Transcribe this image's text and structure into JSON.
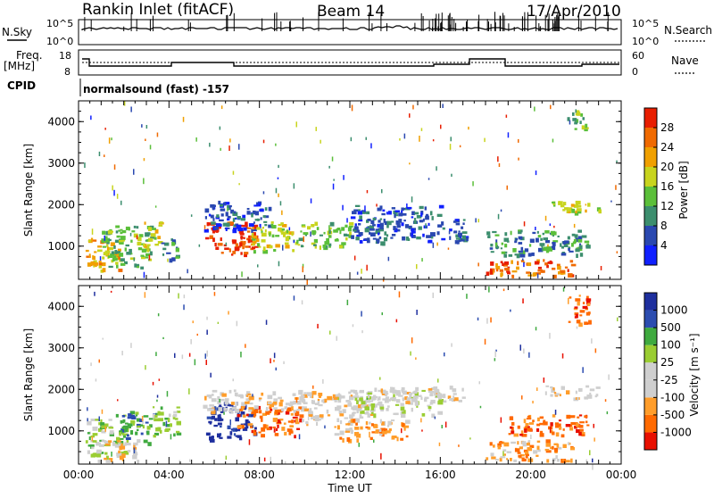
{
  "header": {
    "station": "Rankin Inlet (fitACF)",
    "beam": "Beam 14",
    "date": "17/Apr/2010"
  },
  "noise_panel": {
    "left_label": "N.Sky",
    "right_label": "N.Search",
    "left_ticks": [
      "10^5",
      "10^0"
    ],
    "right_ticks": [
      "10^5",
      "10^0"
    ]
  },
  "freq_panel": {
    "left_label_1": "Freq.",
    "left_label_2": "[MHz]",
    "right_label": "Nave",
    "left_ticks": [
      "18",
      "8"
    ],
    "right_ticks": [
      "60",
      "0"
    ]
  },
  "cpid": {
    "label": "CPID",
    "text": "normalsound (fast) -157"
  },
  "colors": {
    "power": [
      "#1020ff",
      "#2a48b0",
      "#3c8e6e",
      "#5bbf3a",
      "#c8d41e",
      "#f0a000",
      "#f06a00",
      "#e81e00"
    ],
    "velocity": [
      "#e81000",
      "#ff6a00",
      "#ff9d2a",
      "#cfcfcf",
      "#cfcfcf",
      "#9acd32",
      "#3faa3f",
      "#2c4db0",
      "#1e2f9e"
    ]
  },
  "chart_data": [
    {
      "type": "heatmap",
      "name": "power",
      "ylabel": "Slant Range [km]",
      "xlabel": "",
      "ylim": [
        200,
        4500
      ],
      "yticks": [
        "1000",
        "2000",
        "3000",
        "4000"
      ],
      "xlim_hours": [
        0,
        24
      ],
      "colorbar": {
        "label": "Power [dB]",
        "ticks": [
          "4",
          "8",
          "12",
          "16",
          "20",
          "24",
          "28"
        ],
        "range": [
          0,
          32
        ]
      },
      "blobs": [
        {
          "t0": 0.3,
          "t1": 1.8,
          "r0": 400,
          "r1": 1200,
          "level": 5
        },
        {
          "t0": 1.0,
          "t1": 3.2,
          "r0": 500,
          "r1": 1500,
          "level": 3
        },
        {
          "t0": 2.8,
          "t1": 3.6,
          "r0": 900,
          "r1": 1600,
          "level": 4
        },
        {
          "t0": 3.6,
          "t1": 4.4,
          "r0": 700,
          "r1": 1200,
          "level": 2
        },
        {
          "t0": 5.6,
          "t1": 7.8,
          "r0": 800,
          "r1": 1600,
          "level": 7
        },
        {
          "t0": 5.5,
          "t1": 8.4,
          "r0": 1400,
          "r1": 2100,
          "level": 1
        },
        {
          "t0": 7.6,
          "t1": 9.6,
          "r0": 900,
          "r1": 1600,
          "level": 4
        },
        {
          "t0": 9.6,
          "t1": 12.0,
          "r0": 1000,
          "r1": 1600,
          "level": 3
        },
        {
          "t0": 12.0,
          "t1": 16.0,
          "r0": 1100,
          "r1": 2000,
          "level": 1
        },
        {
          "t0": 16.0,
          "t1": 17.2,
          "r0": 1100,
          "r1": 1700,
          "level": 1
        },
        {
          "t0": 18.0,
          "t1": 21.8,
          "r0": 300,
          "r1": 700,
          "level": 6
        },
        {
          "t0": 18.0,
          "t1": 22.5,
          "r0": 800,
          "r1": 1400,
          "level": 2
        },
        {
          "t0": 20.8,
          "t1": 23.0,
          "r0": 1800,
          "r1": 2100,
          "level": 4
        },
        {
          "t0": 21.6,
          "t1": 22.4,
          "r0": 3800,
          "r1": 4300,
          "level": 3
        }
      ]
    },
    {
      "type": "heatmap",
      "name": "velocity",
      "ylabel": "Slant Range [km]",
      "xlabel": "Time UT",
      "ylim": [
        200,
        4500
      ],
      "yticks": [
        "1000",
        "2000",
        "3000",
        "4000"
      ],
      "xticks": [
        "00:00",
        "04:00",
        "08:00",
        "12:00",
        "16:00",
        "20:00",
        "00:00"
      ],
      "xlim_hours": [
        0,
        24
      ],
      "colorbar": {
        "label": "Velocity [m s⁻¹]",
        "ticks": [
          "-1000",
          "-500",
          "-100",
          "-25",
          "25",
          "100",
          "500",
          "1000"
        ],
        "range": [
          -1200,
          1200
        ]
      },
      "blobs": [
        {
          "t0": 0.3,
          "t1": 2.0,
          "r0": 400,
          "r1": 1300,
          "level": 5
        },
        {
          "t0": 1.6,
          "t1": 3.4,
          "r0": 700,
          "r1": 1500,
          "level": 6
        },
        {
          "t0": 0.8,
          "t1": 2.6,
          "r0": 300,
          "r1": 800,
          "level": 3
        },
        {
          "t0": 3.2,
          "t1": 4.4,
          "r0": 900,
          "r1": 1600,
          "level": 5
        },
        {
          "t0": 5.6,
          "t1": 7.8,
          "r0": 800,
          "r1": 1700,
          "level": 8
        },
        {
          "t0": 7.0,
          "t1": 9.8,
          "r0": 900,
          "r1": 1600,
          "level": 1
        },
        {
          "t0": 5.5,
          "t1": 10.0,
          "r0": 1500,
          "r1": 2000,
          "level": 3
        },
        {
          "t0": 9.8,
          "t1": 13.0,
          "r0": 1200,
          "r1": 2000,
          "level": 3
        },
        {
          "t0": 12.0,
          "t1": 16.0,
          "r0": 1400,
          "r1": 2000,
          "level": 4
        },
        {
          "t0": 13.0,
          "t1": 17.0,
          "r0": 1700,
          "r1": 2100,
          "level": 3
        },
        {
          "t0": 11.2,
          "t1": 14.5,
          "r0": 800,
          "r1": 1300,
          "level": 2
        },
        {
          "t0": 18.0,
          "t1": 21.8,
          "r0": 300,
          "r1": 800,
          "level": 2
        },
        {
          "t0": 19.0,
          "t1": 22.6,
          "r0": 900,
          "r1": 1400,
          "level": 1
        },
        {
          "t0": 20.6,
          "t1": 23.0,
          "r0": 1800,
          "r1": 2100,
          "level": 3
        },
        {
          "t0": 21.6,
          "t1": 22.6,
          "r0": 3600,
          "r1": 4300,
          "level": 1
        }
      ]
    }
  ]
}
